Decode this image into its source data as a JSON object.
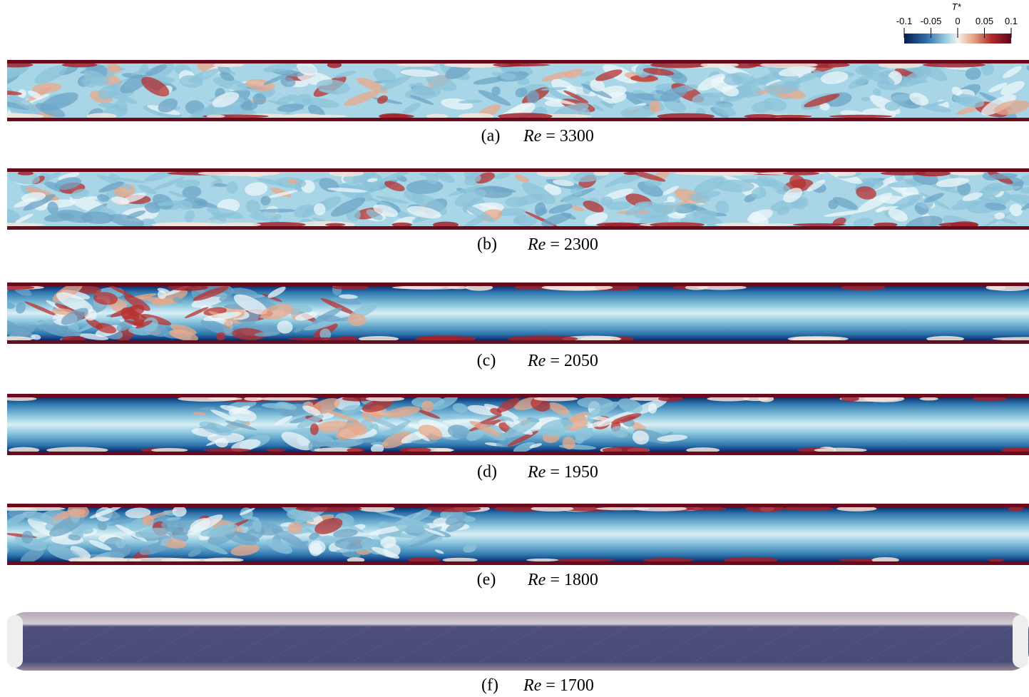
{
  "colorbar": {
    "title": "T*",
    "lim": [
      -0.1,
      0.1
    ],
    "ticks": [
      -0.1,
      -0.05,
      0,
      0.05,
      0.1
    ]
  },
  "panels": [
    {
      "label": "(a)",
      "variable": "Re",
      "relation": "= 3300"
    },
    {
      "label": "(b)",
      "variable": "Re",
      "relation": "= 2300"
    },
    {
      "label": "(c)",
      "variable": "Re",
      "relation": "= 2050"
    },
    {
      "label": "(d)",
      "variable": "Re",
      "relation": "= 1950"
    },
    {
      "label": "(e)",
      "variable": "Re",
      "relation": "= 1800"
    },
    {
      "label": "(f)",
      "variable": "Re",
      "relation": "= 1700"
    }
  ]
}
